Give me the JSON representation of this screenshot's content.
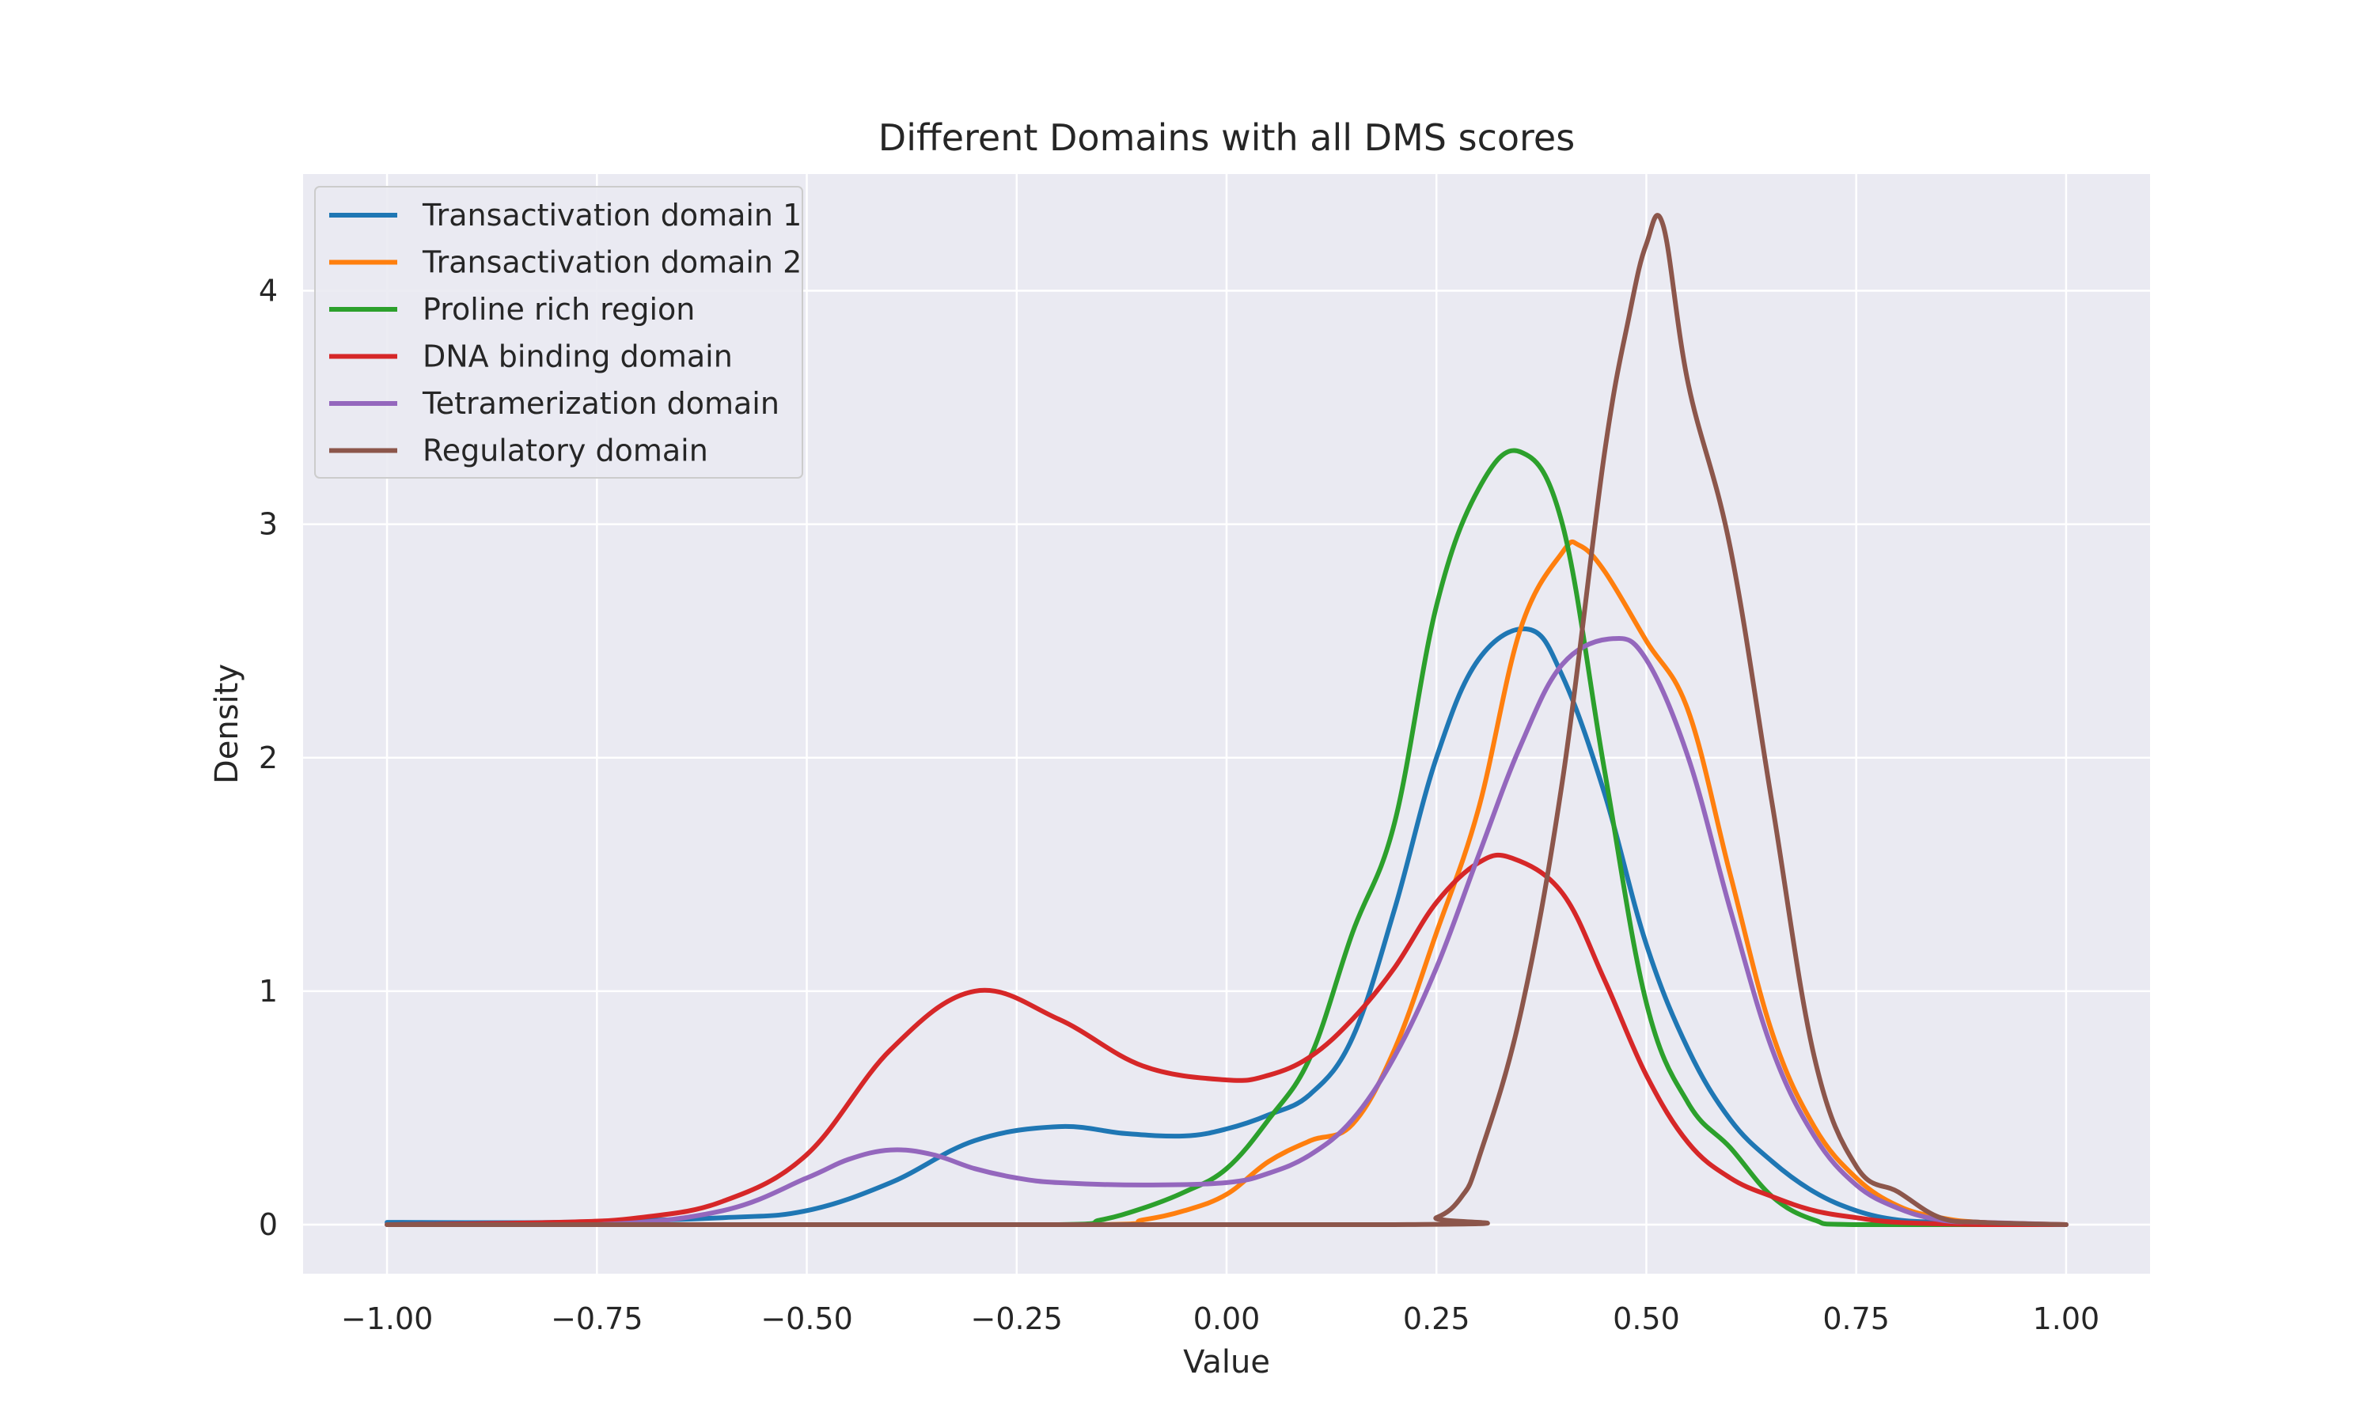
{
  "chart_data": {
    "type": "line",
    "title": "Different Domains with all DMS scores",
    "xlabel": "Value",
    "ylabel": "Density",
    "xlim": [
      -1.1,
      1.1
    ],
    "ylim": [
      -0.21,
      4.5
    ],
    "xticks": [
      -1.0,
      -0.75,
      -0.5,
      -0.25,
      0.0,
      0.25,
      0.5,
      0.75,
      1.0
    ],
    "xtick_labels": [
      "−1.00",
      "−0.75",
      "−0.50",
      "−0.25",
      "0.00",
      "0.25",
      "0.50",
      "0.75",
      "1.00"
    ],
    "yticks": [
      0,
      1,
      2,
      3,
      4
    ],
    "ytick_labels": [
      "0",
      "1",
      "2",
      "3",
      "4"
    ],
    "grid": true,
    "legend_position": "top-left",
    "series": [
      {
        "name": "Transactivation domain 1",
        "color": "#1f77b4",
        "x": [
          -1.0,
          -0.8,
          -0.6,
          -0.5,
          -0.4,
          -0.3,
          -0.2,
          -0.12,
          -0.05,
          0.0,
          0.05,
          0.1,
          0.15,
          0.2,
          0.25,
          0.3,
          0.36,
          0.4,
          0.45,
          0.5,
          0.55,
          0.6,
          0.65,
          0.7,
          0.75,
          0.8,
          0.85,
          0.9,
          1.0
        ],
        "y": [
          0.01,
          0.01,
          0.03,
          0.06,
          0.18,
          0.36,
          0.42,
          0.39,
          0.38,
          0.41,
          0.47,
          0.56,
          0.8,
          1.35,
          2.0,
          2.42,
          2.55,
          2.35,
          1.85,
          1.2,
          0.75,
          0.45,
          0.27,
          0.14,
          0.06,
          0.02,
          0.01,
          0.0,
          0.0
        ]
      },
      {
        "name": "Transactivation domain 2",
        "color": "#ff7f0e",
        "x": [
          -1.0,
          -0.5,
          -0.15,
          -0.1,
          -0.05,
          0.0,
          0.05,
          0.1,
          0.15,
          0.2,
          0.25,
          0.3,
          0.35,
          0.4,
          0.42,
          0.45,
          0.5,
          0.55,
          0.6,
          0.65,
          0.7,
          0.75,
          0.8,
          0.85,
          0.9,
          1.0
        ],
        "y": [
          0.0,
          0.0,
          0.0,
          0.02,
          0.06,
          0.13,
          0.27,
          0.36,
          0.43,
          0.75,
          1.25,
          1.78,
          2.55,
          2.88,
          2.91,
          2.8,
          2.5,
          2.2,
          1.5,
          0.82,
          0.42,
          0.2,
          0.08,
          0.03,
          0.01,
          0.0
        ]
      },
      {
        "name": "Proline rich region",
        "color": "#2ca02c",
        "x": [
          -1.0,
          -0.5,
          -0.2,
          -0.15,
          -0.1,
          -0.05,
          0.0,
          0.05,
          0.1,
          0.15,
          0.2,
          0.25,
          0.3,
          0.35,
          0.4,
          0.45,
          0.5,
          0.55,
          0.6,
          0.65,
          0.7,
          0.75,
          1.0
        ],
        "y": [
          0.0,
          0.0,
          0.0,
          0.02,
          0.07,
          0.14,
          0.24,
          0.45,
          0.72,
          1.25,
          1.72,
          2.65,
          3.15,
          3.31,
          3.0,
          1.95,
          0.95,
          0.52,
          0.33,
          0.12,
          0.02,
          0.0,
          0.0
        ]
      },
      {
        "name": "DNA binding domain",
        "color": "#d62728",
        "x": [
          -1.0,
          -0.8,
          -0.7,
          -0.6,
          -0.5,
          -0.4,
          -0.3,
          -0.2,
          -0.1,
          0.0,
          0.05,
          0.1,
          0.15,
          0.2,
          0.25,
          0.3,
          0.34,
          0.4,
          0.45,
          0.5,
          0.55,
          0.6,
          0.65,
          0.7,
          0.75,
          0.8,
          0.9,
          1.0
        ],
        "y": [
          0.0,
          0.01,
          0.03,
          0.1,
          0.3,
          0.75,
          1.0,
          0.88,
          0.68,
          0.62,
          0.64,
          0.72,
          0.88,
          1.1,
          1.38,
          1.55,
          1.57,
          1.42,
          1.05,
          0.64,
          0.35,
          0.2,
          0.12,
          0.06,
          0.03,
          0.01,
          0.0,
          0.0
        ]
      },
      {
        "name": "Tetramerization domain",
        "color": "#9467bd",
        "x": [
          -1.0,
          -0.75,
          -0.6,
          -0.5,
          -0.45,
          -0.4,
          -0.35,
          -0.3,
          -0.25,
          -0.2,
          -0.1,
          0.0,
          0.05,
          0.1,
          0.15,
          0.2,
          0.25,
          0.3,
          0.35,
          0.4,
          0.46,
          0.5,
          0.55,
          0.6,
          0.65,
          0.7,
          0.75,
          0.8,
          0.85,
          0.9,
          1.0
        ],
        "y": [
          0.0,
          0.0,
          0.06,
          0.2,
          0.28,
          0.32,
          0.3,
          0.24,
          0.2,
          0.18,
          0.17,
          0.18,
          0.22,
          0.3,
          0.45,
          0.72,
          1.1,
          1.58,
          2.05,
          2.4,
          2.51,
          2.42,
          2.0,
          1.35,
          0.75,
          0.38,
          0.17,
          0.07,
          0.02,
          0.01,
          0.0
        ]
      },
      {
        "name": "Regulatory domain",
        "color": "#8c564b",
        "x": [
          -1.0,
          0.2,
          0.25,
          0.28,
          0.3,
          0.35,
          0.4,
          0.45,
          0.48,
          0.5,
          0.52,
          0.55,
          0.6,
          0.65,
          0.7,
          0.75,
          0.8,
          0.85,
          0.9,
          1.0
        ],
        "y": [
          0.0,
          0.0,
          0.03,
          0.12,
          0.28,
          0.9,
          1.9,
          3.3,
          3.9,
          4.2,
          4.28,
          3.6,
          2.9,
          1.8,
          0.72,
          0.25,
          0.14,
          0.03,
          0.01,
          0.0
        ]
      }
    ]
  }
}
